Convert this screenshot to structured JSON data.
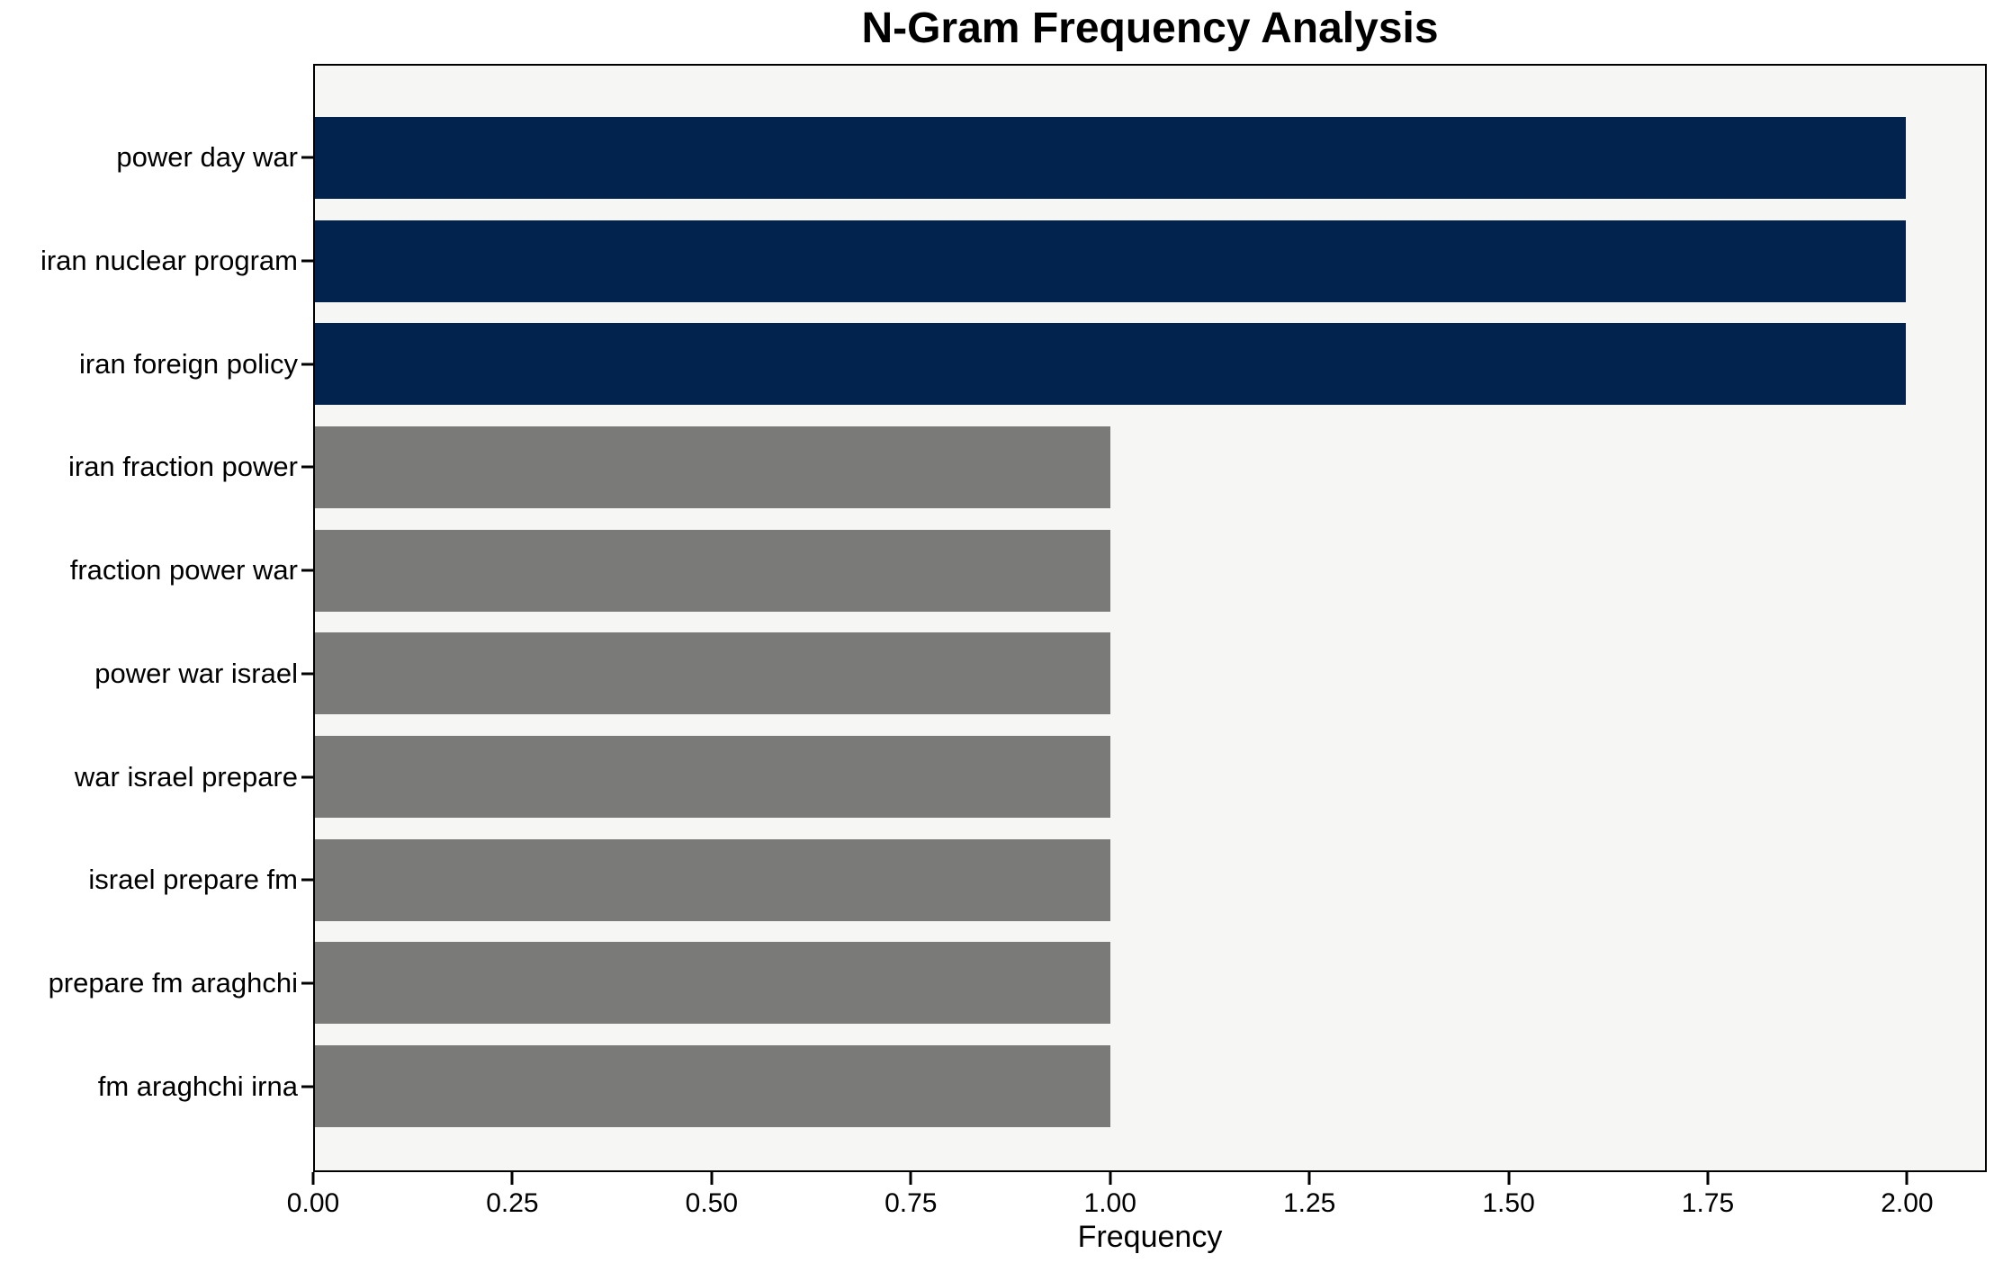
{
  "figure": {
    "background": "#ffffff"
  },
  "chart_data": {
    "type": "bar",
    "orientation": "horizontal",
    "title": "N-Gram Frequency Analysis",
    "xlabel": "Frequency",
    "ylabel": "",
    "categories": [
      "power day war",
      "iran nuclear program",
      "iran foreign policy",
      "iran fraction power",
      "fraction power war",
      "power war israel",
      "war israel prepare",
      "israel prepare fm",
      "prepare fm araghchi",
      "fm araghchi irna"
    ],
    "values": [
      2,
      2,
      2,
      1,
      1,
      1,
      1,
      1,
      1,
      1
    ],
    "bar_colors": [
      "#02234e",
      "#02234e",
      "#02234e",
      "#7a7a78",
      "#7a7a78",
      "#7a7a78",
      "#7a7a78",
      "#7a7a78",
      "#7a7a78",
      "#7a7a78"
    ],
    "x_ticks": [
      {
        "value": 0.0,
        "label": "0.00"
      },
      {
        "value": 0.25,
        "label": "0.25"
      },
      {
        "value": 0.5,
        "label": "0.50"
      },
      {
        "value": 0.75,
        "label": "0.75"
      },
      {
        "value": 1.0,
        "label": "1.00"
      },
      {
        "value": 1.25,
        "label": "1.25"
      },
      {
        "value": 1.5,
        "label": "1.50"
      },
      {
        "value": 1.75,
        "label": "1.75"
      },
      {
        "value": 2.0,
        "label": "2.00"
      }
    ],
    "xlim": [
      0,
      2.1
    ],
    "grid": false,
    "legend": null,
    "plot_background": "#f6f6f5",
    "colors": {
      "high_frequency_bar": "#02234e",
      "low_frequency_bar": "#7a7a78",
      "axis": "#000000",
      "text": "#000000"
    }
  }
}
